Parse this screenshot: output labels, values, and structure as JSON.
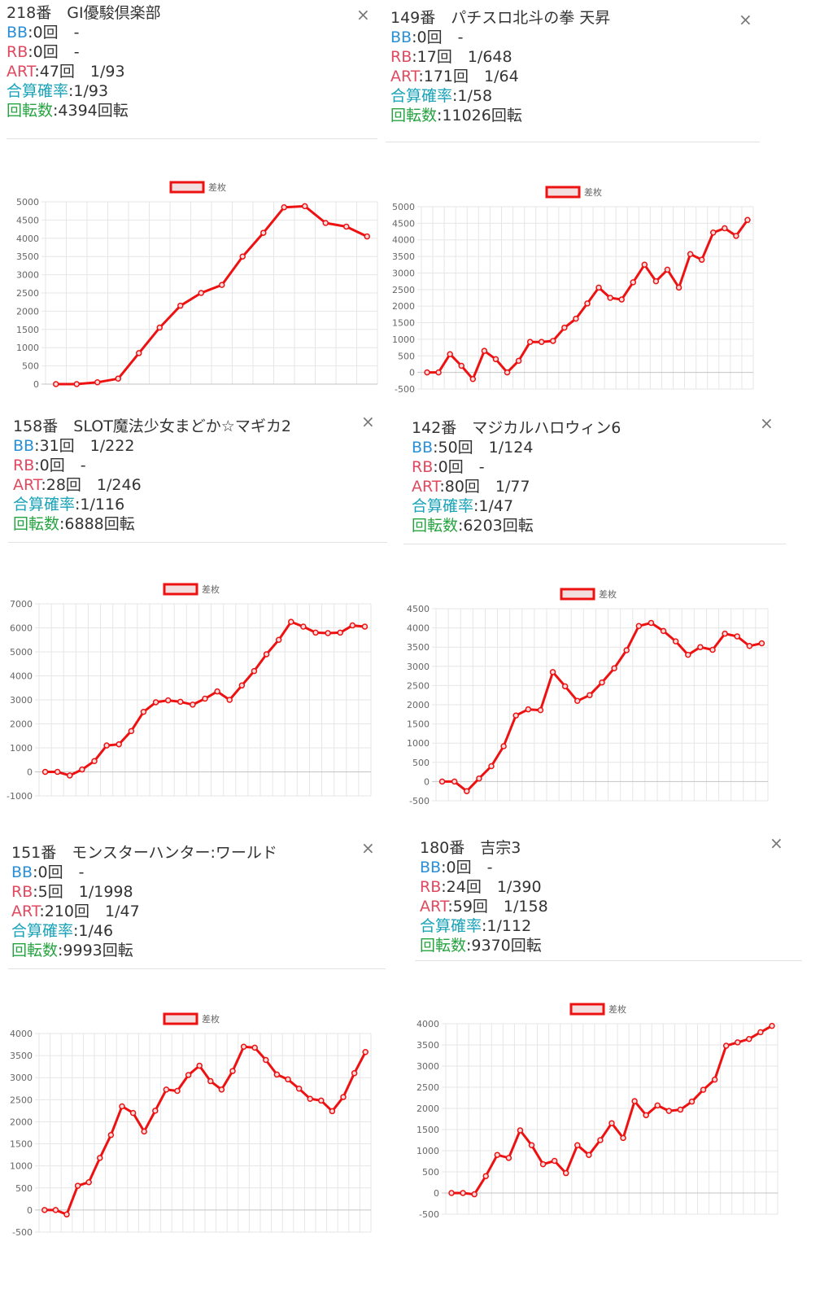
{
  "colors": {
    "bb": "#2a8fd6",
    "rb": "#e0495f",
    "art": "#e0495f",
    "prob": "#1aa3b8",
    "spin": "#24a33f",
    "line": "#ee1111",
    "legend_fill": "#f2dede",
    "grid": "#e6e6e6"
  },
  "close_label": "×",
  "machines": [
    {
      "title": "218番　GI優駿倶楽部",
      "bb_label": "BB",
      "bb_value": ":0回　-",
      "rb_label": "RB",
      "rb_value": ":0回　-",
      "art_label": "ART",
      "art_value": ":47回　1/93",
      "prob_label": "合算確率",
      "prob_value": ":1/93",
      "spin_label": "回転数",
      "spin_value": ":4394回転"
    },
    {
      "title": "149番　パチスロ北斗の拳 天昇",
      "bb_label": "BB",
      "bb_value": ":0回　-",
      "rb_label": "RB",
      "rb_value": ":17回　1/648",
      "art_label": "ART",
      "art_value": ":171回　1/64",
      "prob_label": "合算確率",
      "prob_value": ":1/58",
      "spin_label": "回転数",
      "spin_value": ":11026回転"
    },
    {
      "title": "158番　SLOT魔法少女まどか☆マギカ2",
      "bb_label": "BB",
      "bb_value": ":31回　1/222",
      "rb_label": "RB",
      "rb_value": ":0回　-",
      "art_label": "ART",
      "art_value": ":28回　1/246",
      "prob_label": "合算確率",
      "prob_value": ":1/116",
      "spin_label": "回転数",
      "spin_value": ":6888回転"
    },
    {
      "title": "142番　マジカルハロウィン6",
      "bb_label": "BB",
      "bb_value": ":50回　1/124",
      "rb_label": "RB",
      "rb_value": ":0回　-",
      "art_label": "ART",
      "art_value": ":80回　1/77",
      "prob_label": "合算確率",
      "prob_value": ":1/47",
      "spin_label": "回転数",
      "spin_value": ":6203回転"
    },
    {
      "title": "151番　モンスターハンター:ワールド",
      "bb_label": "BB",
      "bb_value": ":0回　-",
      "rb_label": "RB",
      "rb_value": ":5回　1/1998",
      "art_label": "ART",
      "art_value": ":210回　1/47",
      "prob_label": "合算確率",
      "prob_value": ":1/46",
      "spin_label": "回転数",
      "spin_value": ":9993回転"
    },
    {
      "title": "180番　吉宗3",
      "bb_label": "BB",
      "bb_value": ":0回　-",
      "rb_label": "RB",
      "rb_value": ":24回　1/390",
      "art_label": "ART",
      "art_value": ":59回　1/158",
      "prob_label": "合算確率",
      "prob_value": ":1/112",
      "spin_label": "回転数",
      "spin_value": ":9370回転"
    }
  ],
  "chart_data": [
    {
      "type": "line",
      "legend": "差枚",
      "legend_position": "top",
      "grid": true,
      "ylim": [
        0,
        5000
      ],
      "yticks": [
        0,
        500,
        1000,
        1500,
        2000,
        2500,
        3000,
        3500,
        4000,
        4500,
        5000
      ],
      "series": [
        {
          "name": "差枚",
          "values": [
            0,
            0,
            50,
            150,
            850,
            1550,
            2150,
            2500,
            2720,
            3500,
            4150,
            4850,
            4880,
            4420,
            4320,
            4050
          ]
        }
      ]
    },
    {
      "type": "line",
      "legend": "差枚",
      "legend_position": "top",
      "grid": true,
      "ylim": [
        -500,
        5000
      ],
      "yticks": [
        -500,
        0,
        500,
        1000,
        1500,
        2000,
        2500,
        3000,
        3500,
        4000,
        4500,
        5000
      ],
      "series": [
        {
          "name": "差枚",
          "values": [
            0,
            0,
            550,
            200,
            -200,
            650,
            400,
            0,
            350,
            920,
            920,
            950,
            1350,
            1620,
            2080,
            2560,
            2250,
            2200,
            2720,
            3250,
            2750,
            3100,
            2560,
            3570,
            3400,
            4220,
            4350,
            4120,
            4600
          ]
        }
      ]
    },
    {
      "type": "line",
      "legend": "差枚",
      "legend_position": "top",
      "grid": true,
      "ylim": [
        -1000,
        7000
      ],
      "yticks": [
        -1000,
        0,
        1000,
        2000,
        3000,
        4000,
        5000,
        6000,
        7000
      ],
      "series": [
        {
          "name": "差枚",
          "values": [
            0,
            0,
            -150,
            100,
            450,
            1100,
            1150,
            1700,
            2500,
            2900,
            2980,
            2920,
            2800,
            3050,
            3350,
            3000,
            3600,
            4200,
            4900,
            5500,
            6250,
            6050,
            5800,
            5780,
            5800,
            6100,
            6050
          ]
        }
      ]
    },
    {
      "type": "line",
      "legend": "差枚",
      "legend_position": "top",
      "grid": true,
      "ylim": [
        -500,
        4500
      ],
      "yticks": [
        -500,
        0,
        500,
        1000,
        1500,
        2000,
        2500,
        3000,
        3500,
        4000,
        4500
      ],
      "series": [
        {
          "name": "差枚",
          "values": [
            0,
            0,
            -250,
            80,
            400,
            920,
            1720,
            1880,
            1860,
            2850,
            2480,
            2100,
            2250,
            2580,
            2950,
            3420,
            4050,
            4130,
            3920,
            3650,
            3300,
            3500,
            3430,
            3850,
            3780,
            3530,
            3600
          ]
        }
      ]
    },
    {
      "type": "line",
      "legend": "差枚",
      "legend_position": "top",
      "grid": true,
      "ylim": [
        -500,
        4000
      ],
      "yticks": [
        -500,
        0,
        500,
        1000,
        1500,
        2000,
        2500,
        3000,
        3500,
        4000
      ],
      "series": [
        {
          "name": "差枚",
          "values": [
            0,
            0,
            -100,
            550,
            630,
            1180,
            1700,
            2350,
            2200,
            1780,
            2250,
            2730,
            2700,
            3060,
            3270,
            2920,
            2730,
            3150,
            3700,
            3680,
            3400,
            3070,
            2960,
            2750,
            2520,
            2480,
            2240,
            2560,
            3100,
            3580
          ]
        }
      ]
    },
    {
      "type": "line",
      "legend": "差枚",
      "legend_position": "top",
      "grid": true,
      "ylim": [
        -500,
        4000
      ],
      "yticks": [
        -500,
        0,
        500,
        1000,
        1500,
        2000,
        2500,
        3000,
        3500,
        4000
      ],
      "series": [
        {
          "name": "差枚",
          "values": [
            0,
            0,
            -30,
            400,
            900,
            830,
            1480,
            1130,
            680,
            760,
            470,
            1130,
            900,
            1250,
            1650,
            1300,
            2170,
            1840,
            2070,
            1940,
            1970,
            2160,
            2440,
            2680,
            3480,
            3560,
            3640,
            3800,
            3950
          ]
        }
      ]
    }
  ]
}
